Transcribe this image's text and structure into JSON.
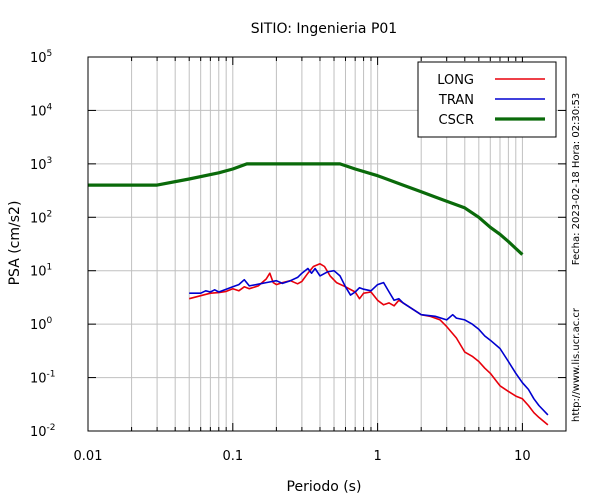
{
  "chart_data": {
    "type": "line",
    "title": "SITIO: Ingenieria P01",
    "xlabel": "Periodo (s)",
    "ylabel": "PSA (cm/s2)",
    "x_scale": "log",
    "y_scale": "log",
    "xlim": [
      0.01,
      20
    ],
    "ylim": [
      0.01,
      100000
    ],
    "x_ticks": [
      {
        "value": 0.01,
        "label": "0.01"
      },
      {
        "value": 0.1,
        "label": "0.1"
      },
      {
        "value": 1,
        "label": "1"
      },
      {
        "value": 10,
        "label": "10"
      }
    ],
    "y_ticks": [
      {
        "value": 0.01,
        "base": "10",
        "exp": "-2"
      },
      {
        "value": 0.1,
        "base": "10",
        "exp": "-1"
      },
      {
        "value": 1,
        "base": "10",
        "exp": "0"
      },
      {
        "value": 10,
        "base": "10",
        "exp": "1"
      },
      {
        "value": 100,
        "base": "10",
        "exp": "2"
      },
      {
        "value": 1000,
        "base": "10",
        "exp": "3"
      },
      {
        "value": 10000,
        "base": "10",
        "exp": "4"
      },
      {
        "value": 100000,
        "base": "10",
        "exp": "5"
      }
    ],
    "grid": true,
    "legend_position": "top-right",
    "series": [
      {
        "name": "LONG",
        "color": "#e8000b",
        "points": [
          [
            0.05,
            3.0
          ],
          [
            0.06,
            3.4
          ],
          [
            0.07,
            3.8
          ],
          [
            0.08,
            3.9
          ],
          [
            0.09,
            4.1
          ],
          [
            0.1,
            4.6
          ],
          [
            0.11,
            4.2
          ],
          [
            0.12,
            5.0
          ],
          [
            0.13,
            4.6
          ],
          [
            0.15,
            5.2
          ],
          [
            0.17,
            7.0
          ],
          [
            0.18,
            9.0
          ],
          [
            0.19,
            6.0
          ],
          [
            0.2,
            5.5
          ],
          [
            0.22,
            6.0
          ],
          [
            0.25,
            6.5
          ],
          [
            0.28,
            5.7
          ],
          [
            0.3,
            6.3
          ],
          [
            0.33,
            9.0
          ],
          [
            0.36,
            12.0
          ],
          [
            0.4,
            13.5
          ],
          [
            0.43,
            12.0
          ],
          [
            0.47,
            8.0
          ],
          [
            0.52,
            6.0
          ],
          [
            0.6,
            5.0
          ],
          [
            0.7,
            4.0
          ],
          [
            0.75,
            3.0
          ],
          [
            0.8,
            3.8
          ],
          [
            0.9,
            4.0
          ],
          [
            1.0,
            2.8
          ],
          [
            1.1,
            2.3
          ],
          [
            1.2,
            2.5
          ],
          [
            1.3,
            2.2
          ],
          [
            1.4,
            2.8
          ],
          [
            1.5,
            2.5
          ],
          [
            1.7,
            2.0
          ],
          [
            2.0,
            1.5
          ],
          [
            2.3,
            1.4
          ],
          [
            2.7,
            1.2
          ],
          [
            3.0,
            0.9
          ],
          [
            3.5,
            0.55
          ],
          [
            4.0,
            0.3
          ],
          [
            4.5,
            0.25
          ],
          [
            5.0,
            0.2
          ],
          [
            5.5,
            0.15
          ],
          [
            6.0,
            0.12
          ],
          [
            7.0,
            0.07
          ],
          [
            8.0,
            0.055
          ],
          [
            9.0,
            0.045
          ],
          [
            10.0,
            0.04
          ],
          [
            11.0,
            0.03
          ],
          [
            12.0,
            0.022
          ],
          [
            13.0,
            0.018
          ],
          [
            15.0,
            0.013
          ]
        ]
      },
      {
        "name": "TRAN",
        "color": "#0000d0",
        "points": [
          [
            0.05,
            3.8
          ],
          [
            0.06,
            3.8
          ],
          [
            0.065,
            4.2
          ],
          [
            0.07,
            4.0
          ],
          [
            0.075,
            4.4
          ],
          [
            0.08,
            4.0
          ],
          [
            0.09,
            4.5
          ],
          [
            0.1,
            5.0
          ],
          [
            0.11,
            5.5
          ],
          [
            0.12,
            6.8
          ],
          [
            0.13,
            5.2
          ],
          [
            0.15,
            5.6
          ],
          [
            0.17,
            6.0
          ],
          [
            0.2,
            6.5
          ],
          [
            0.22,
            5.8
          ],
          [
            0.25,
            6.5
          ],
          [
            0.28,
            7.5
          ],
          [
            0.3,
            9.0
          ],
          [
            0.33,
            11.0
          ],
          [
            0.35,
            9.0
          ],
          [
            0.37,
            11.0
          ],
          [
            0.4,
            8.0
          ],
          [
            0.45,
            9.5
          ],
          [
            0.5,
            10.0
          ],
          [
            0.55,
            8.0
          ],
          [
            0.6,
            5.0
          ],
          [
            0.65,
            3.5
          ],
          [
            0.7,
            4.0
          ],
          [
            0.75,
            4.8
          ],
          [
            0.8,
            4.5
          ],
          [
            0.9,
            4.2
          ],
          [
            1.0,
            5.5
          ],
          [
            1.1,
            6.0
          ],
          [
            1.2,
            4.0
          ],
          [
            1.3,
            2.8
          ],
          [
            1.4,
            3.0
          ],
          [
            1.5,
            2.5
          ],
          [
            1.7,
            2.0
          ],
          [
            2.0,
            1.5
          ],
          [
            2.5,
            1.4
          ],
          [
            3.0,
            1.2
          ],
          [
            3.3,
            1.5
          ],
          [
            3.5,
            1.3
          ],
          [
            4.0,
            1.2
          ],
          [
            4.5,
            1.0
          ],
          [
            5.0,
            0.8
          ],
          [
            5.5,
            0.6
          ],
          [
            6.0,
            0.5
          ],
          [
            7.0,
            0.35
          ],
          [
            8.0,
            0.2
          ],
          [
            9.0,
            0.12
          ],
          [
            10.0,
            0.08
          ],
          [
            11.0,
            0.06
          ],
          [
            12.0,
            0.04
          ],
          [
            13.0,
            0.03
          ],
          [
            15.0,
            0.02
          ]
        ]
      },
      {
        "name": "CSCR",
        "color": "#0a6a0a",
        "points": [
          [
            0.01,
            400
          ],
          [
            0.03,
            400
          ],
          [
            0.05,
            520
          ],
          [
            0.08,
            680
          ],
          [
            0.1,
            800
          ],
          [
            0.125,
            1000
          ],
          [
            0.2,
            1000
          ],
          [
            0.3,
            1000
          ],
          [
            0.4,
            1000
          ],
          [
            0.55,
            1000
          ],
          [
            0.7,
            800
          ],
          [
            1.0,
            600
          ],
          [
            1.5,
            400
          ],
          [
            2.0,
            300
          ],
          [
            2.5,
            240
          ],
          [
            3.0,
            200
          ],
          [
            4.0,
            150
          ],
          [
            5.0,
            100
          ],
          [
            6.0,
            65
          ],
          [
            7.0,
            48
          ],
          [
            8.0,
            35
          ],
          [
            9.0,
            26
          ],
          [
            10.0,
            20
          ]
        ]
      }
    ]
  },
  "side_text": {
    "date": "Fecha: 2023-02-18 Hora: 02:30:53",
    "url": "http://www.lis.ucr.ac.cr"
  }
}
